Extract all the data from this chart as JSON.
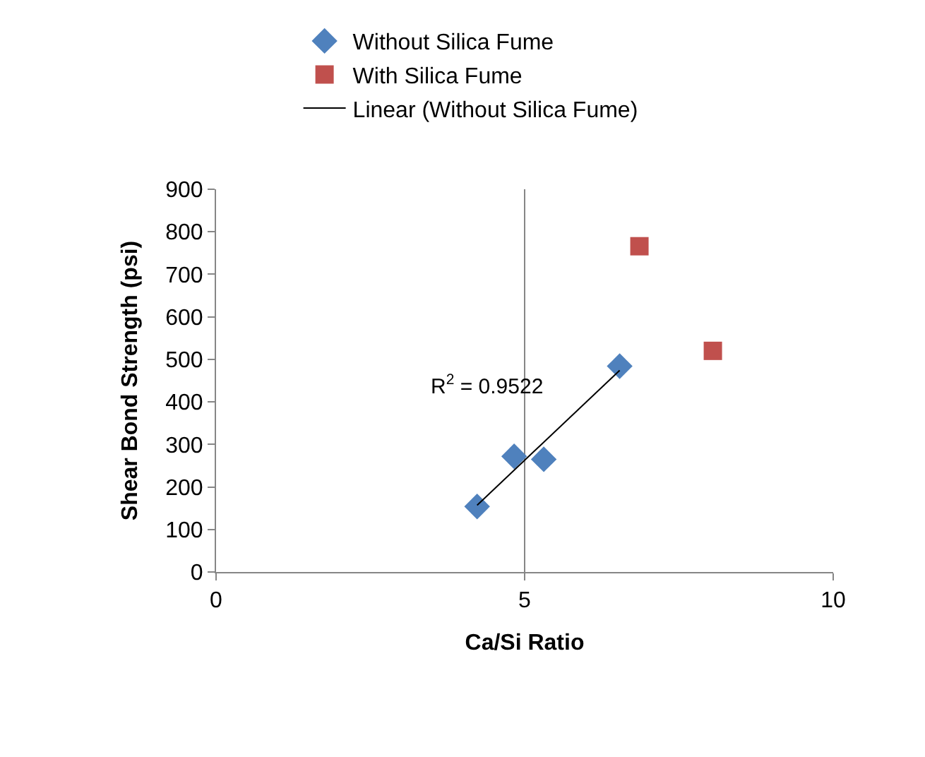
{
  "chart_data": {
    "type": "scatter",
    "xlabel": "Ca/Si Ratio",
    "ylabel": "Shear Bond Strength (psi)",
    "xlim": [
      0,
      10
    ],
    "xticks": [
      0,
      5,
      10
    ],
    "ylim": [
      0,
      900
    ],
    "yticks": [
      0,
      100,
      200,
      300,
      400,
      500,
      600,
      700,
      800,
      900
    ],
    "grid": "x",
    "legend": "top",
    "series": [
      {
        "name": "Without Silica Fume",
        "color": "#4f81bd",
        "marker": "diamond",
        "x": [
          4.23,
          4.83,
          5.31,
          6.54
        ],
        "values": [
          154,
          272,
          265,
          484
        ]
      },
      {
        "name": "With Silica Fume",
        "color": "#c0504d",
        "marker": "square",
        "x": [
          6.86,
          8.05
        ],
        "values": [
          766,
          520
        ]
      },
      {
        "name": "Linear (Without Silica Fume)",
        "type": "line",
        "color": "#000000",
        "line_style": "solid",
        "marker": "none",
        "x": [
          4.23,
          6.54
        ],
        "values": [
          157,
          474
        ]
      }
    ],
    "annotations": [
      "R$^{2}$ = 0.9522"
    ]
  }
}
